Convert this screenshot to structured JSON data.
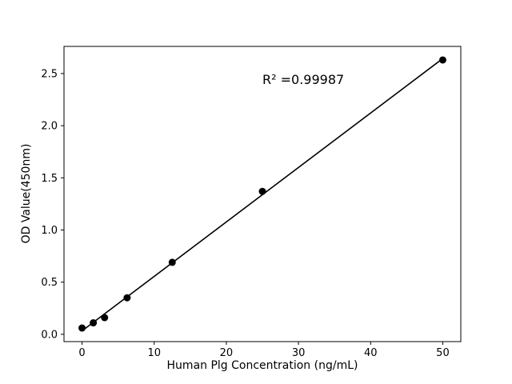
{
  "chart_data": {
    "type": "scatter",
    "title": "",
    "xlabel": "Human Plg Concentration (ng/mL)",
    "ylabel": "OD Value(450nm)",
    "annotation": "R² =0.99987",
    "x": [
      0,
      1.5625,
      3.125,
      6.25,
      12.5,
      25,
      50
    ],
    "y": [
      0.06,
      0.11,
      0.16,
      0.35,
      0.69,
      1.37,
      2.63
    ],
    "fit_line": true,
    "xlim": [
      -2.5,
      52.5
    ],
    "ylim": [
      -0.07,
      2.76
    ],
    "xticks": [
      0,
      10,
      20,
      30,
      40,
      50
    ],
    "xtick_labels": [
      "0",
      "10",
      "20",
      "30",
      "40",
      "50"
    ],
    "yticks": [
      0.0,
      0.5,
      1.0,
      1.5,
      2.0,
      2.5
    ],
    "ytick_labels": [
      "0.0",
      "0.5",
      "1.0",
      "1.5",
      "2.0",
      "2.5"
    ],
    "legend": null,
    "grid": false,
    "marker_color": "#000000",
    "line_color": "#000000",
    "background": "#ffffff"
  }
}
